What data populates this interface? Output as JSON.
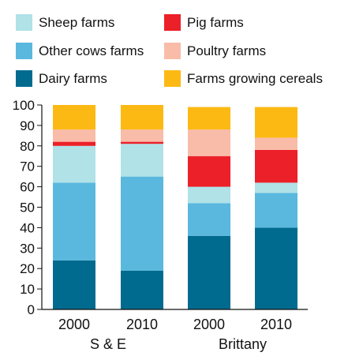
{
  "chart_data": {
    "type": "bar",
    "stacked": true,
    "title": "",
    "xlabel": "",
    "ylabel": "",
    "ylim": [
      0,
      100
    ],
    "yticks": [
      0,
      10,
      20,
      30,
      40,
      50,
      60,
      70,
      80,
      90,
      100
    ],
    "groups": [
      "S & E",
      "Brittany"
    ],
    "categories": [
      "2000",
      "2010",
      "2000",
      "2010"
    ],
    "category_group": [
      0,
      0,
      1,
      1
    ],
    "legend_position": "top",
    "series": [
      {
        "name": "Dairy farms",
        "color": "#006b8f",
        "values": [
          24,
          19,
          36,
          40
        ]
      },
      {
        "name": "Other cows farms",
        "color": "#5ab8de",
        "values": [
          38,
          46,
          16,
          17
        ]
      },
      {
        "name": "Sheep farms",
        "color": "#b0e2e8",
        "values": [
          18,
          16,
          8,
          5
        ]
      },
      {
        "name": "Pig farms",
        "color": "#ec2028",
        "values": [
          2,
          1,
          15,
          16
        ]
      },
      {
        "name": "Poultry farms",
        "color": "#f9bca9",
        "values": [
          6,
          6,
          13,
          6
        ]
      },
      {
        "name": "Farms growing cereals",
        "color": "#fdb913",
        "values": [
          12,
          12,
          11,
          15
        ]
      }
    ],
    "legend_order": [
      "Sheep farms",
      "Pig farms",
      "Other cows farms",
      "Poultry farms",
      "Dairy farms",
      "Farms growing cereals"
    ]
  }
}
